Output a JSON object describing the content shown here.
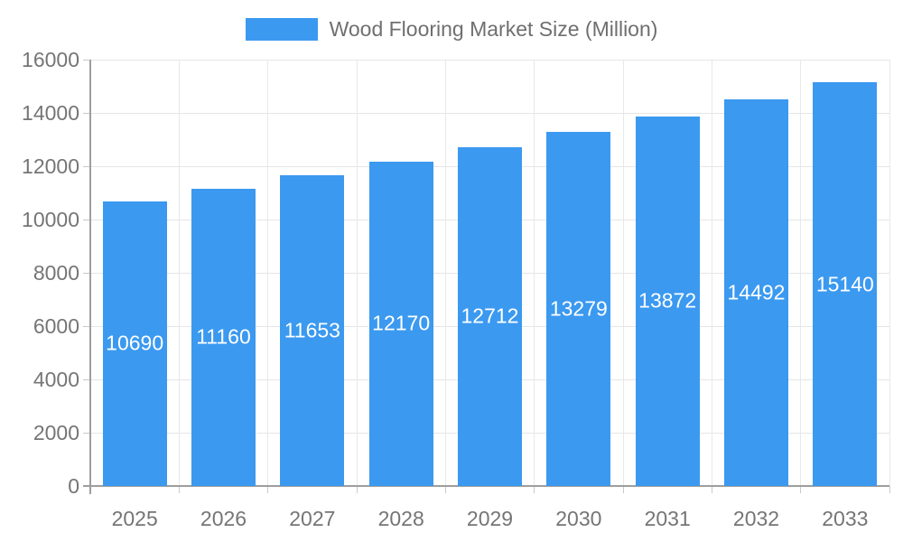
{
  "legend": {
    "label": "Wood Flooring Market Size (Million)",
    "swatch_color": "#3b99f0"
  },
  "chart_data": {
    "type": "bar",
    "title": "Wood Flooring Market Size (Million)",
    "categories": [
      "2025",
      "2026",
      "2027",
      "2028",
      "2029",
      "2030",
      "2031",
      "2032",
      "2033"
    ],
    "values": [
      10690,
      11160,
      11653,
      12170,
      12712,
      13279,
      13872,
      14492,
      15140
    ],
    "xlabel": "",
    "ylabel": "",
    "ylim": [
      0,
      16000
    ],
    "y_ticks": [
      0,
      2000,
      4000,
      6000,
      8000,
      10000,
      12000,
      14000,
      16000
    ],
    "bar_color": "#3b99f0",
    "value_label_color": "#ffffff",
    "grid": true,
    "legend_position": "top"
  },
  "colors": {
    "h_grid_line": "#e6e6e6",
    "v_grid_line": "#e8e8e8",
    "axis_line": "#9e9e9e",
    "tick_mark": "#c9c9c9",
    "axis_text": "#757575",
    "background": "#ffffff"
  }
}
